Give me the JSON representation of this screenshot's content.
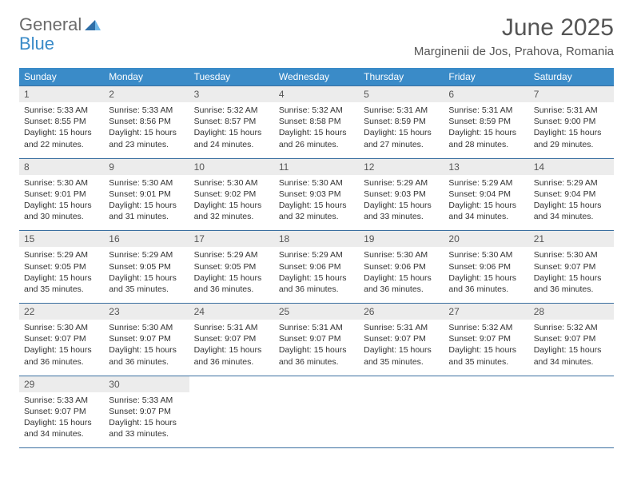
{
  "logo": {
    "text1": "General",
    "text2": "Blue"
  },
  "title": "June 2025",
  "location": "Marginenii de Jos, Prahova, Romania",
  "colors": {
    "header_bg": "#3a8bc8",
    "header_fg": "#ffffff",
    "daynum_bg": "#ececec",
    "border": "#3a6fa0",
    "logo_gray": "#6b6b6b",
    "logo_blue": "#3a8bc8"
  },
  "fonts": {
    "title_size": 30,
    "location_size": 15,
    "dow_size": 12,
    "daynum_size": 12,
    "body_size": 10.5
  },
  "dow": [
    "Sunday",
    "Monday",
    "Tuesday",
    "Wednesday",
    "Thursday",
    "Friday",
    "Saturday"
  ],
  "weeks": [
    {
      "nums": [
        "1",
        "2",
        "3",
        "4",
        "5",
        "6",
        "7"
      ],
      "cells": [
        {
          "sunrise": "Sunrise: 5:33 AM",
          "sunset": "Sunset: 8:55 PM",
          "day1": "Daylight: 15 hours",
          "day2": "and 22 minutes."
        },
        {
          "sunrise": "Sunrise: 5:33 AM",
          "sunset": "Sunset: 8:56 PM",
          "day1": "Daylight: 15 hours",
          "day2": "and 23 minutes."
        },
        {
          "sunrise": "Sunrise: 5:32 AM",
          "sunset": "Sunset: 8:57 PM",
          "day1": "Daylight: 15 hours",
          "day2": "and 24 minutes."
        },
        {
          "sunrise": "Sunrise: 5:32 AM",
          "sunset": "Sunset: 8:58 PM",
          "day1": "Daylight: 15 hours",
          "day2": "and 26 minutes."
        },
        {
          "sunrise": "Sunrise: 5:31 AM",
          "sunset": "Sunset: 8:59 PM",
          "day1": "Daylight: 15 hours",
          "day2": "and 27 minutes."
        },
        {
          "sunrise": "Sunrise: 5:31 AM",
          "sunset": "Sunset: 8:59 PM",
          "day1": "Daylight: 15 hours",
          "day2": "and 28 minutes."
        },
        {
          "sunrise": "Sunrise: 5:31 AM",
          "sunset": "Sunset: 9:00 PM",
          "day1": "Daylight: 15 hours",
          "day2": "and 29 minutes."
        }
      ]
    },
    {
      "nums": [
        "8",
        "9",
        "10",
        "11",
        "12",
        "13",
        "14"
      ],
      "cells": [
        {
          "sunrise": "Sunrise: 5:30 AM",
          "sunset": "Sunset: 9:01 PM",
          "day1": "Daylight: 15 hours",
          "day2": "and 30 minutes."
        },
        {
          "sunrise": "Sunrise: 5:30 AM",
          "sunset": "Sunset: 9:01 PM",
          "day1": "Daylight: 15 hours",
          "day2": "and 31 minutes."
        },
        {
          "sunrise": "Sunrise: 5:30 AM",
          "sunset": "Sunset: 9:02 PM",
          "day1": "Daylight: 15 hours",
          "day2": "and 32 minutes."
        },
        {
          "sunrise": "Sunrise: 5:30 AM",
          "sunset": "Sunset: 9:03 PM",
          "day1": "Daylight: 15 hours",
          "day2": "and 32 minutes."
        },
        {
          "sunrise": "Sunrise: 5:29 AM",
          "sunset": "Sunset: 9:03 PM",
          "day1": "Daylight: 15 hours",
          "day2": "and 33 minutes."
        },
        {
          "sunrise": "Sunrise: 5:29 AM",
          "sunset": "Sunset: 9:04 PM",
          "day1": "Daylight: 15 hours",
          "day2": "and 34 minutes."
        },
        {
          "sunrise": "Sunrise: 5:29 AM",
          "sunset": "Sunset: 9:04 PM",
          "day1": "Daylight: 15 hours",
          "day2": "and 34 minutes."
        }
      ]
    },
    {
      "nums": [
        "15",
        "16",
        "17",
        "18",
        "19",
        "20",
        "21"
      ],
      "cells": [
        {
          "sunrise": "Sunrise: 5:29 AM",
          "sunset": "Sunset: 9:05 PM",
          "day1": "Daylight: 15 hours",
          "day2": "and 35 minutes."
        },
        {
          "sunrise": "Sunrise: 5:29 AM",
          "sunset": "Sunset: 9:05 PM",
          "day1": "Daylight: 15 hours",
          "day2": "and 35 minutes."
        },
        {
          "sunrise": "Sunrise: 5:29 AM",
          "sunset": "Sunset: 9:05 PM",
          "day1": "Daylight: 15 hours",
          "day2": "and 36 minutes."
        },
        {
          "sunrise": "Sunrise: 5:29 AM",
          "sunset": "Sunset: 9:06 PM",
          "day1": "Daylight: 15 hours",
          "day2": "and 36 minutes."
        },
        {
          "sunrise": "Sunrise: 5:30 AM",
          "sunset": "Sunset: 9:06 PM",
          "day1": "Daylight: 15 hours",
          "day2": "and 36 minutes."
        },
        {
          "sunrise": "Sunrise: 5:30 AM",
          "sunset": "Sunset: 9:06 PM",
          "day1": "Daylight: 15 hours",
          "day2": "and 36 minutes."
        },
        {
          "sunrise": "Sunrise: 5:30 AM",
          "sunset": "Sunset: 9:07 PM",
          "day1": "Daylight: 15 hours",
          "day2": "and 36 minutes."
        }
      ]
    },
    {
      "nums": [
        "22",
        "23",
        "24",
        "25",
        "26",
        "27",
        "28"
      ],
      "cells": [
        {
          "sunrise": "Sunrise: 5:30 AM",
          "sunset": "Sunset: 9:07 PM",
          "day1": "Daylight: 15 hours",
          "day2": "and 36 minutes."
        },
        {
          "sunrise": "Sunrise: 5:30 AM",
          "sunset": "Sunset: 9:07 PM",
          "day1": "Daylight: 15 hours",
          "day2": "and 36 minutes."
        },
        {
          "sunrise": "Sunrise: 5:31 AM",
          "sunset": "Sunset: 9:07 PM",
          "day1": "Daylight: 15 hours",
          "day2": "and 36 minutes."
        },
        {
          "sunrise": "Sunrise: 5:31 AM",
          "sunset": "Sunset: 9:07 PM",
          "day1": "Daylight: 15 hours",
          "day2": "and 36 minutes."
        },
        {
          "sunrise": "Sunrise: 5:31 AM",
          "sunset": "Sunset: 9:07 PM",
          "day1": "Daylight: 15 hours",
          "day2": "and 35 minutes."
        },
        {
          "sunrise": "Sunrise: 5:32 AM",
          "sunset": "Sunset: 9:07 PM",
          "day1": "Daylight: 15 hours",
          "day2": "and 35 minutes."
        },
        {
          "sunrise": "Sunrise: 5:32 AM",
          "sunset": "Sunset: 9:07 PM",
          "day1": "Daylight: 15 hours",
          "day2": "and 34 minutes."
        }
      ]
    },
    {
      "nums": [
        "29",
        "30",
        "",
        "",
        "",
        "",
        ""
      ],
      "cells": [
        {
          "sunrise": "Sunrise: 5:33 AM",
          "sunset": "Sunset: 9:07 PM",
          "day1": "Daylight: 15 hours",
          "day2": "and 34 minutes."
        },
        {
          "sunrise": "Sunrise: 5:33 AM",
          "sunset": "Sunset: 9:07 PM",
          "day1": "Daylight: 15 hours",
          "day2": "and 33 minutes."
        },
        null,
        null,
        null,
        null,
        null
      ]
    }
  ]
}
